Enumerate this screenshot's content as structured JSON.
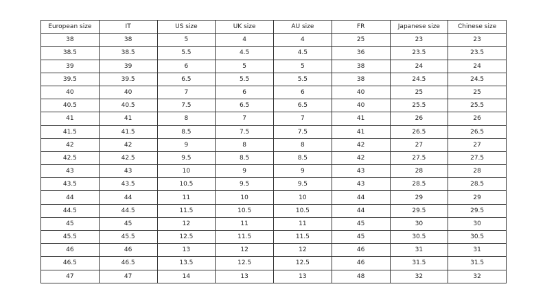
{
  "headers": [
    "European size",
    "IT",
    "US size",
    "UK size",
    "AU size",
    "FR",
    "Japanese size",
    "Chinese size"
  ],
  "rows": [
    [
      "38",
      "38",
      "5",
      "4",
      "4",
      "25",
      "23",
      "23"
    ],
    [
      "38.5",
      "38.5",
      "5.5",
      "4.5",
      "4.5",
      "36",
      "23.5",
      "23.5"
    ],
    [
      "39",
      "39",
      "6",
      "5",
      "5",
      "38",
      "24",
      "24"
    ],
    [
      "39.5",
      "39.5",
      "6.5",
      "5.5",
      "5.5",
      "38",
      "24.5",
      "24.5"
    ],
    [
      "40",
      "40",
      "7",
      "6",
      "6",
      "40",
      "25",
      "25"
    ],
    [
      "40.5",
      "40.5",
      "7.5",
      "6.5",
      "6.5",
      "40",
      "25.5",
      "25.5"
    ],
    [
      "41",
      "41",
      "8",
      "7",
      "7",
      "41",
      "26",
      "26"
    ],
    [
      "41.5",
      "41.5",
      "8.5",
      "7.5",
      "7.5",
      "41",
      "26.5",
      "26.5"
    ],
    [
      "42",
      "42",
      "9",
      "8",
      "8",
      "42",
      "27",
      "27"
    ],
    [
      "42.5",
      "42.5",
      "9.5",
      "8.5",
      "8.5",
      "42",
      "27.5",
      "27.5"
    ],
    [
      "43",
      "43",
      "10",
      "9",
      "9",
      "43",
      "28",
      "28"
    ],
    [
      "43.5",
      "43.5",
      "10.5",
      "9.5",
      "9.5",
      "43",
      "28.5",
      "28.5"
    ],
    [
      "44",
      "44",
      "11",
      "10",
      "10",
      "44",
      "29",
      "29"
    ],
    [
      "44.5",
      "44.5",
      "11.5",
      "10.5",
      "10.5",
      "44",
      "29.5",
      "29.5"
    ],
    [
      "45",
      "45",
      "12",
      "11",
      "11",
      "45",
      "30",
      "30"
    ],
    [
      "45.5",
      "45.5",
      "12.5",
      "11.5",
      "11.5",
      "45",
      "30.5",
      "30.5"
    ],
    [
      "46",
      "46",
      "13",
      "12",
      "12",
      "46",
      "31",
      "31"
    ],
    [
      "46.5",
      "46.5",
      "13.5",
      "12.5",
      "12.5",
      "46",
      "31.5",
      "31.5"
    ],
    [
      "47",
      "47",
      "14",
      "13",
      "13",
      "48",
      "32",
      "32"
    ]
  ]
}
